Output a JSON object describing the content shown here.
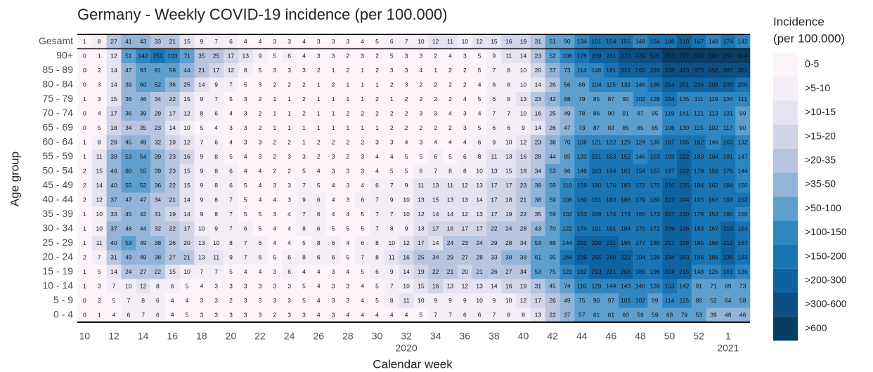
{
  "chart_data": {
    "type": "heatmap",
    "title": "Germany - Weekly COVID-19 incidence (per 100.000)",
    "x_label": "Calendar week",
    "y_label": "Age group",
    "x": [
      10,
      null,
      12,
      null,
      14,
      null,
      16,
      null,
      18,
      null,
      20,
      null,
      22,
      null,
      24,
      null,
      26,
      null,
      28,
      null,
      30,
      null,
      32,
      null,
      34,
      null,
      36,
      null,
      38,
      null,
      40,
      null,
      42,
      null,
      44,
      null,
      46,
      null,
      48,
      null,
      50,
      null,
      52,
      null,
      1,
      null
    ],
    "year_labels": [
      {
        "week": 32,
        "label": "2020"
      },
      {
        "week": 1,
        "label": "2021"
      }
    ],
    "y": [
      "Gesamt",
      "90+",
      "85 - 89",
      "80 - 84",
      "75 - 79",
      "70 - 74",
      "65 - 69",
      "60 - 64",
      "55 - 59",
      "50 - 54",
      "45 - 49",
      "40 - 44",
      "35 - 39",
      "30 - 34",
      "25 - 29",
      "20 - 24",
      "15 - 19",
      "10 - 14",
      "5 - 9",
      "0 - 4"
    ],
    "values": [
      [
        1,
        8,
        27,
        41,
        43,
        33,
        21,
        15,
        9,
        7,
        6,
        4,
        4,
        3,
        3,
        4,
        3,
        3,
        3,
        4,
        5,
        6,
        7,
        10,
        12,
        11,
        10,
        12,
        15,
        16,
        19,
        31,
        51,
        90,
        134,
        151,
        154,
        155,
        148,
        154,
        188,
        210,
        167,
        148,
        174,
        142
      ],
      [
        0,
        1,
        12,
        51,
        142,
        151,
        103,
        71,
        35,
        25,
        17,
        13,
        9,
        5,
        6,
        4,
        3,
        3,
        2,
        3,
        2,
        5,
        3,
        3,
        2,
        4,
        3,
        5,
        9,
        11,
        14,
        23,
        52,
        108,
        178,
        209,
        281,
        373,
        429,
        505,
        657,
        727,
        639,
        603,
        654,
        604
      ],
      [
        0,
        2,
        14,
        47,
        93,
        91,
        59,
        44,
        21,
        17,
        12,
        8,
        5,
        3,
        3,
        3,
        2,
        1,
        2,
        1,
        2,
        3,
        3,
        4,
        1,
        2,
        2,
        5,
        7,
        8,
        10,
        20,
        37,
        73,
        114,
        146,
        181,
        215,
        263,
        293,
        378,
        443,
        375,
        358,
        387,
        351
      ],
      [
        0,
        3,
        14,
        39,
        60,
        52,
        36,
        25,
        14,
        9,
        7,
        5,
        3,
        2,
        2,
        2,
        1,
        2,
        1,
        1,
        1,
        2,
        3,
        2,
        2,
        2,
        2,
        4,
        6,
        6,
        10,
        14,
        26,
        56,
        86,
        104,
        115,
        132,
        146,
        165,
        214,
        251,
        226,
        208,
        232,
        200
      ],
      [
        1,
        3,
        15,
        36,
        46,
        34,
        22,
        15,
        9,
        7,
        5,
        3,
        2,
        1,
        1,
        2,
        1,
        1,
        1,
        1,
        2,
        1,
        2,
        2,
        2,
        2,
        4,
        5,
        6,
        8,
        13,
        23,
        42,
        68,
        79,
        85,
        87,
        90,
        102,
        129,
        154,
        135,
        111,
        119,
        134,
        111
      ],
      [
        0,
        4,
        17,
        36,
        39,
        29,
        17,
        12,
        8,
        6,
        4,
        3,
        2,
        1,
        1,
        2,
        1,
        1,
        2,
        2,
        2,
        2,
        2,
        3,
        3,
        4,
        3,
        4,
        7,
        7,
        10,
        16,
        25,
        49,
        78,
        86,
        90,
        91,
        87,
        95,
        119,
        141,
        121,
        113,
        131,
        99
      ],
      [
        0,
        5,
        18,
        34,
        35,
        23,
        14,
        10,
        5,
        4,
        3,
        3,
        2,
        1,
        1,
        1,
        1,
        1,
        1,
        1,
        1,
        2,
        2,
        2,
        2,
        2,
        3,
        5,
        6,
        6,
        9,
        14,
        26,
        47,
        73,
        87,
        83,
        85,
        85,
        85,
        106,
        130,
        115,
        102,
        117,
        90
      ],
      [
        1,
        8,
        28,
        45,
        49,
        32,
        19,
        12,
        7,
        6,
        4,
        3,
        3,
        2,
        2,
        1,
        2,
        2,
        2,
        2,
        3,
        3,
        4,
        3,
        4,
        4,
        4,
        6,
        9,
        10,
        12,
        23,
        38,
        70,
        106,
        121,
        122,
        129,
        124,
        135,
        167,
        195,
        162,
        146,
        163,
        132
      ],
      [
        1,
        11,
        39,
        53,
        54,
        39,
        23,
        16,
        9,
        8,
        5,
        4,
        3,
        2,
        3,
        3,
        2,
        3,
        2,
        3,
        4,
        4,
        5,
        5,
        6,
        5,
        6,
        8,
        11,
        13,
        16,
        28,
        44,
        85,
        133,
        151,
        153,
        152,
        146,
        153,
        193,
        222,
        183,
        164,
        181,
        147
      ],
      [
        2,
        15,
        46,
        60,
        55,
        39,
        23,
        15,
        9,
        8,
        6,
        4,
        4,
        2,
        2,
        5,
        4,
        3,
        3,
        3,
        4,
        5,
        5,
        6,
        7,
        8,
        8,
        10,
        13,
        15,
        18,
        34,
        53,
        96,
        146,
        163,
        164,
        161,
        154,
        157,
        197,
        222,
        178,
        156,
        179,
        144
      ],
      [
        2,
        14,
        40,
        55,
        52,
        36,
        22,
        15,
        9,
        8,
        6,
        5,
        4,
        3,
        3,
        7,
        5,
        4,
        3,
        4,
        6,
        7,
        9,
        11,
        13,
        11,
        12,
        13,
        17,
        17,
        23,
        39,
        59,
        110,
        159,
        180,
        176,
        183,
        172,
        175,
        210,
        235,
        184,
        162,
        184,
        150
      ],
      [
        2,
        12,
        37,
        47,
        47,
        34,
        21,
        14,
        9,
        8,
        7,
        5,
        4,
        4,
        3,
        9,
        6,
        4,
        3,
        6,
        7,
        9,
        10,
        13,
        15,
        13,
        13,
        14,
        17,
        18,
        21,
        38,
        59,
        108,
        160,
        181,
        183,
        188,
        179,
        180,
        222,
        244,
        193,
        163,
        193,
        152
      ],
      [
        1,
        10,
        33,
        45,
        42,
        31,
        19,
        14,
        9,
        8,
        7,
        5,
        5,
        3,
        4,
        7,
        6,
        4,
        4,
        5,
        7,
        7,
        10,
        12,
        14,
        14,
        12,
        13,
        17,
        19,
        22,
        35,
        59,
        102,
        153,
        169,
        174,
        174,
        165,
        173,
        207,
        230,
        179,
        153,
        190,
        150
      ],
      [
        1,
        10,
        37,
        48,
        44,
        32,
        22,
        17,
        10,
        9,
        7,
        6,
        5,
        4,
        4,
        8,
        6,
        5,
        5,
        5,
        7,
        8,
        9,
        13,
        17,
        16,
        17,
        17,
        22,
        24,
        28,
        43,
        70,
        122,
        174,
        191,
        191,
        184,
        170,
        172,
        209,
        236,
        183,
        167,
        210,
        163
      ],
      [
        1,
        11,
        40,
        53,
        49,
        38,
        26,
        20,
        13,
        10,
        8,
        7,
        6,
        4,
        4,
        5,
        8,
        6,
        4,
        6,
        8,
        10,
        12,
        17,
        14,
        24,
        23,
        24,
        29,
        28,
        34,
        53,
        88,
        144,
        203,
        220,
        211,
        196,
        177,
        180,
        212,
        238,
        185,
        166,
        212,
        167
      ],
      [
        2,
        7,
        31,
        49,
        49,
        38,
        27,
        21,
        13,
        11,
        9,
        7,
        6,
        5,
        6,
        8,
        6,
        6,
        5,
        7,
        8,
        11,
        16,
        25,
        34,
        29,
        27,
        28,
        33,
        38,
        38,
        61,
        95,
        164,
        226,
        255,
        240,
        222,
        194,
        199,
        234,
        263,
        196,
        186,
        236,
        183
      ],
      [
        1,
        5,
        14,
        24,
        27,
        22,
        15,
        10,
        7,
        7,
        5,
        4,
        4,
        3,
        6,
        4,
        4,
        3,
        4,
        5,
        6,
        9,
        14,
        19,
        22,
        21,
        20,
        21,
        26,
        27,
        34,
        53,
        75,
        123,
        182,
        213,
        221,
        208,
        189,
        196,
        224,
        215,
        148,
        126,
        161,
        136
      ],
      [
        1,
        3,
        7,
        10,
        12,
        8,
        6,
        5,
        4,
        3,
        3,
        3,
        3,
        3,
        3,
        5,
        4,
        3,
        3,
        4,
        5,
        7,
        10,
        15,
        16,
        13,
        12,
        13,
        14,
        16,
        19,
        31,
        45,
        74,
        110,
        129,
        144,
        143,
        140,
        139,
        153,
        142,
        91,
        71,
        89,
        73
      ],
      [
        0,
        2,
        5,
        7,
        8,
        6,
        4,
        4,
        3,
        3,
        2,
        3,
        3,
        3,
        3,
        5,
        4,
        3,
        3,
        4,
        5,
        8,
        11,
        10,
        9,
        9,
        9,
        10,
        9,
        10,
        12,
        17,
        26,
        49,
        75,
        90,
        97,
        105,
        102,
        99,
        114,
        115,
        80,
        52,
        64,
        58
      ],
      [
        0,
        1,
        4,
        6,
        7,
        6,
        4,
        5,
        3,
        3,
        3,
        3,
        3,
        2,
        3,
        3,
        4,
        3,
        4,
        4,
        4,
        4,
        4,
        5,
        7,
        7,
        6,
        6,
        7,
        8,
        8,
        13,
        22,
        37,
        57,
        61,
        61,
        60,
        59,
        59,
        68,
        79,
        53,
        39,
        48,
        46
      ]
    ],
    "legend_title": [
      "Incidence",
      "(per 100.000)"
    ],
    "color_bins": [
      {
        "label": "0-5",
        "min": 0,
        "color": "#fdf4fa"
      },
      {
        "label": ">5-10",
        "min": 5,
        "color": "#f4eef6"
      },
      {
        "label": ">10-15",
        "min": 10,
        "color": "#e6e3f0"
      },
      {
        "label": ">15-20",
        "min": 15,
        "color": "#d2d4e8"
      },
      {
        "label": ">20-35",
        "min": 20,
        "color": "#b7c5e0"
      },
      {
        "label": ">35-50",
        "min": 35,
        "color": "#92b4d8"
      },
      {
        "label": ">50-100",
        "min": 50,
        "color": "#5e9fcd"
      },
      {
        "label": ">100-150",
        "min": 100,
        "color": "#2f86c0"
      },
      {
        "label": ">150-200",
        "min": 150,
        "color": "#1a74b3"
      },
      {
        "label": ">200-300",
        "min": 200,
        "color": "#0f62a0"
      },
      {
        "label": ">300-600",
        "min": 300,
        "color": "#0b4f84"
      },
      {
        "label": ">600",
        "min": 600,
        "color": "#083d63"
      }
    ]
  }
}
